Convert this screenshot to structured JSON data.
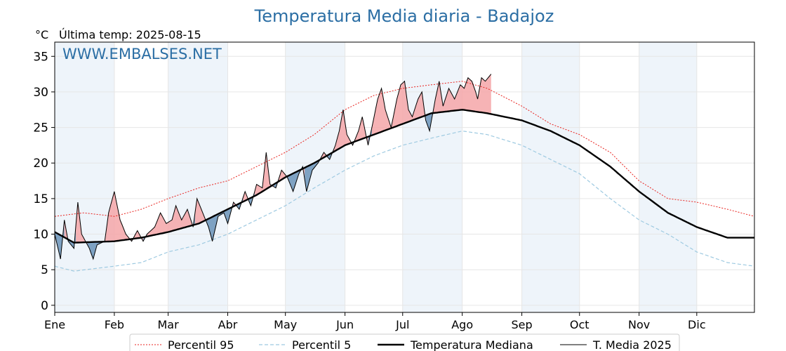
{
  "chart_data": {
    "type": "line",
    "title": "Temperatura Media diaria - Badajoz",
    "ylabel_unit": "°C",
    "subtitle": "Última temp: 2025-08-15",
    "watermark": "WWW.EMBALSES.NET",
    "ylim": [
      -1,
      37
    ],
    "yticks": [
      0,
      5,
      10,
      15,
      20,
      25,
      30,
      35
    ],
    "month_labels": [
      "Ene",
      "Feb",
      "Mar",
      "Abr",
      "May",
      "Jun",
      "Jul",
      "Ago",
      "Sep",
      "Oct",
      "Nov",
      "Dic"
    ],
    "month_starts_day": [
      0,
      31,
      59,
      90,
      120,
      151,
      181,
      212,
      243,
      273,
      304,
      334
    ],
    "days_in_year": 365,
    "grid": true,
    "legend_position": "bottom",
    "series": [
      {
        "key": "p95",
        "name": "Percentil 95",
        "color": "#e8231f",
        "style": "dotted",
        "knots": [
          [
            0,
            12.5
          ],
          [
            15,
            13
          ],
          [
            31,
            12.5
          ],
          [
            45,
            13.5
          ],
          [
            59,
            15
          ],
          [
            75,
            16.5
          ],
          [
            90,
            17.5
          ],
          [
            105,
            19.5
          ],
          [
            120,
            21.5
          ],
          [
            135,
            24
          ],
          [
            151,
            27.5
          ],
          [
            166,
            29.5
          ],
          [
            181,
            30.5
          ],
          [
            196,
            31
          ],
          [
            212,
            31.5
          ],
          [
            225,
            30.5
          ],
          [
            243,
            28
          ],
          [
            258,
            25.5
          ],
          [
            273,
            24
          ],
          [
            289,
            21.5
          ],
          [
            304,
            17.5
          ],
          [
            319,
            15
          ],
          [
            334,
            14.5
          ],
          [
            350,
            13.5
          ],
          [
            364,
            12.5
          ]
        ]
      },
      {
        "key": "p5",
        "name": "Percentil 5",
        "color": "#9ecae1",
        "style": "dashed",
        "knots": [
          [
            0,
            5.5
          ],
          [
            10,
            4.8
          ],
          [
            31,
            5.5
          ],
          [
            45,
            6
          ],
          [
            59,
            7.5
          ],
          [
            75,
            8.5
          ],
          [
            90,
            10
          ],
          [
            105,
            12
          ],
          [
            120,
            14
          ],
          [
            135,
            16.5
          ],
          [
            151,
            19
          ],
          [
            166,
            21
          ],
          [
            181,
            22.5
          ],
          [
            196,
            23.5
          ],
          [
            212,
            24.5
          ],
          [
            225,
            24
          ],
          [
            243,
            22.5
          ],
          [
            258,
            20.5
          ],
          [
            273,
            18.5
          ],
          [
            289,
            15
          ],
          [
            304,
            12
          ],
          [
            319,
            10
          ],
          [
            334,
            7.5
          ],
          [
            350,
            6
          ],
          [
            364,
            5.5
          ]
        ]
      },
      {
        "key": "median",
        "name": "Temperatura Mediana",
        "color": "#000000",
        "style": "solid-thick",
        "knots": [
          [
            0,
            10.3
          ],
          [
            10,
            8.8
          ],
          [
            31,
            9
          ],
          [
            45,
            9.5
          ],
          [
            59,
            10.3
          ],
          [
            75,
            11.5
          ],
          [
            90,
            13.5
          ],
          [
            105,
            15.5
          ],
          [
            120,
            18
          ],
          [
            135,
            20
          ],
          [
            151,
            22.5
          ],
          [
            166,
            24
          ],
          [
            181,
            25.5
          ],
          [
            196,
            27
          ],
          [
            212,
            27.5
          ],
          [
            225,
            27
          ],
          [
            243,
            26
          ],
          [
            258,
            24.5
          ],
          [
            273,
            22.5
          ],
          [
            289,
            19.5
          ],
          [
            304,
            16
          ],
          [
            319,
            13
          ],
          [
            334,
            11
          ],
          [
            350,
            9.5
          ],
          [
            364,
            9.5
          ]
        ]
      },
      {
        "key": "t2025",
        "name": "T. Media 2025",
        "color": "#000000",
        "style": "solid-thin",
        "knots": [
          [
            0,
            10
          ],
          [
            3,
            6.5
          ],
          [
            5,
            12
          ],
          [
            7,
            9
          ],
          [
            10,
            8
          ],
          [
            12,
            14.5
          ],
          [
            14,
            10
          ],
          [
            18,
            8
          ],
          [
            20,
            6.5
          ],
          [
            22,
            8.5
          ],
          [
            26,
            9
          ],
          [
            28,
            13
          ],
          [
            31,
            16
          ],
          [
            34,
            12
          ],
          [
            37,
            10
          ],
          [
            40,
            9
          ],
          [
            43,
            10.5
          ],
          [
            46,
            9
          ],
          [
            48,
            10
          ],
          [
            52,
            11
          ],
          [
            55,
            13
          ],
          [
            58,
            11.5
          ],
          [
            61,
            12
          ],
          [
            63,
            14
          ],
          [
            66,
            12
          ],
          [
            69,
            13.5
          ],
          [
            72,
            11
          ],
          [
            74,
            15
          ],
          [
            77,
            13
          ],
          [
            80,
            11
          ],
          [
            82,
            9
          ],
          [
            85,
            12.5
          ],
          [
            88,
            13
          ],
          [
            90,
            11.5
          ],
          [
            93,
            14.5
          ],
          [
            96,
            13.5
          ],
          [
            99,
            16
          ],
          [
            102,
            14
          ],
          [
            105,
            17
          ],
          [
            108,
            16.5
          ],
          [
            110,
            21.5
          ],
          [
            112,
            17
          ],
          [
            115,
            16.5
          ],
          [
            118,
            19
          ],
          [
            121,
            18
          ],
          [
            124,
            16
          ],
          [
            127,
            18.5
          ],
          [
            129,
            19.5
          ],
          [
            131,
            16
          ],
          [
            134,
            19
          ],
          [
            137,
            20
          ],
          [
            140,
            21.5
          ],
          [
            143,
            20.5
          ],
          [
            146,
            22.5
          ],
          [
            148,
            24.5
          ],
          [
            150,
            27.5
          ],
          [
            152,
            24
          ],
          [
            155,
            22.5
          ],
          [
            158,
            24.5
          ],
          [
            160,
            26.5
          ],
          [
            163,
            22.5
          ],
          [
            165,
            25
          ],
          [
            168,
            29
          ],
          [
            170,
            30.5
          ],
          [
            172,
            27.5
          ],
          [
            175,
            25
          ],
          [
            178,
            29
          ],
          [
            180,
            31
          ],
          [
            182,
            31.5
          ],
          [
            184,
            27.5
          ],
          [
            186,
            26.5
          ],
          [
            189,
            29
          ],
          [
            191,
            30
          ],
          [
            193,
            26
          ],
          [
            195,
            24.5
          ],
          [
            198,
            29
          ],
          [
            200,
            31.5
          ],
          [
            202,
            28
          ],
          [
            205,
            30.5
          ],
          [
            208,
            29
          ],
          [
            211,
            31
          ],
          [
            213,
            30.5
          ],
          [
            215,
            32
          ],
          [
            217,
            31.5
          ],
          [
            219,
            30
          ],
          [
            220,
            29
          ],
          [
            222,
            32
          ],
          [
            224,
            31.5
          ],
          [
            227,
            32.5
          ]
        ]
      }
    ],
    "legend": [
      "Percentil 95",
      "Percentil 5",
      "Temperatura Mediana",
      "T. Media 2025"
    ],
    "fill_above_median_color": "#f4a6a8",
    "fill_below_median_color": "#6a93b9",
    "month_band_color": "#eef4fa"
  }
}
